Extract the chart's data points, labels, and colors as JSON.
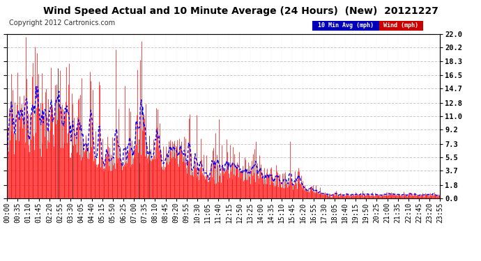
{
  "title": "Wind Speed Actual and 10 Minute Average (24 Hours)  (New)  20121227",
  "copyright": "Copyright 2012 Cartronics.com",
  "ytick_values": [
    0.0,
    1.8,
    3.7,
    5.5,
    7.3,
    9.2,
    11.0,
    12.8,
    14.7,
    16.5,
    18.3,
    20.2,
    22.0
  ],
  "ymax": 22.0,
  "ymin": 0.0,
  "bg_color": "#ffffff",
  "plot_bg": "#ffffff",
  "grid_color": "#bbbbbb",
  "wind_color": "#ff0000",
  "avg_color": "#0000ff",
  "legend_avg_bg": "#0000bb",
  "legend_wind_bg": "#cc0000",
  "title_fontsize": 10,
  "copyright_fontsize": 7,
  "tick_fontsize": 7,
  "xtick_labels": [
    "00:00",
    "00:35",
    "01:10",
    "01:45",
    "02:20",
    "02:55",
    "03:30",
    "04:05",
    "04:40",
    "05:15",
    "05:50",
    "06:25",
    "07:00",
    "07:35",
    "08:10",
    "08:45",
    "09:20",
    "09:55",
    "10:30",
    "11:05",
    "11:40",
    "12:15",
    "12:50",
    "13:25",
    "14:00",
    "14:35",
    "15:10",
    "15:45",
    "16:20",
    "16:55",
    "17:30",
    "18:05",
    "18:40",
    "19:15",
    "19:50",
    "20:25",
    "21:00",
    "21:35",
    "22:10",
    "22:45",
    "23:20",
    "23:55"
  ]
}
